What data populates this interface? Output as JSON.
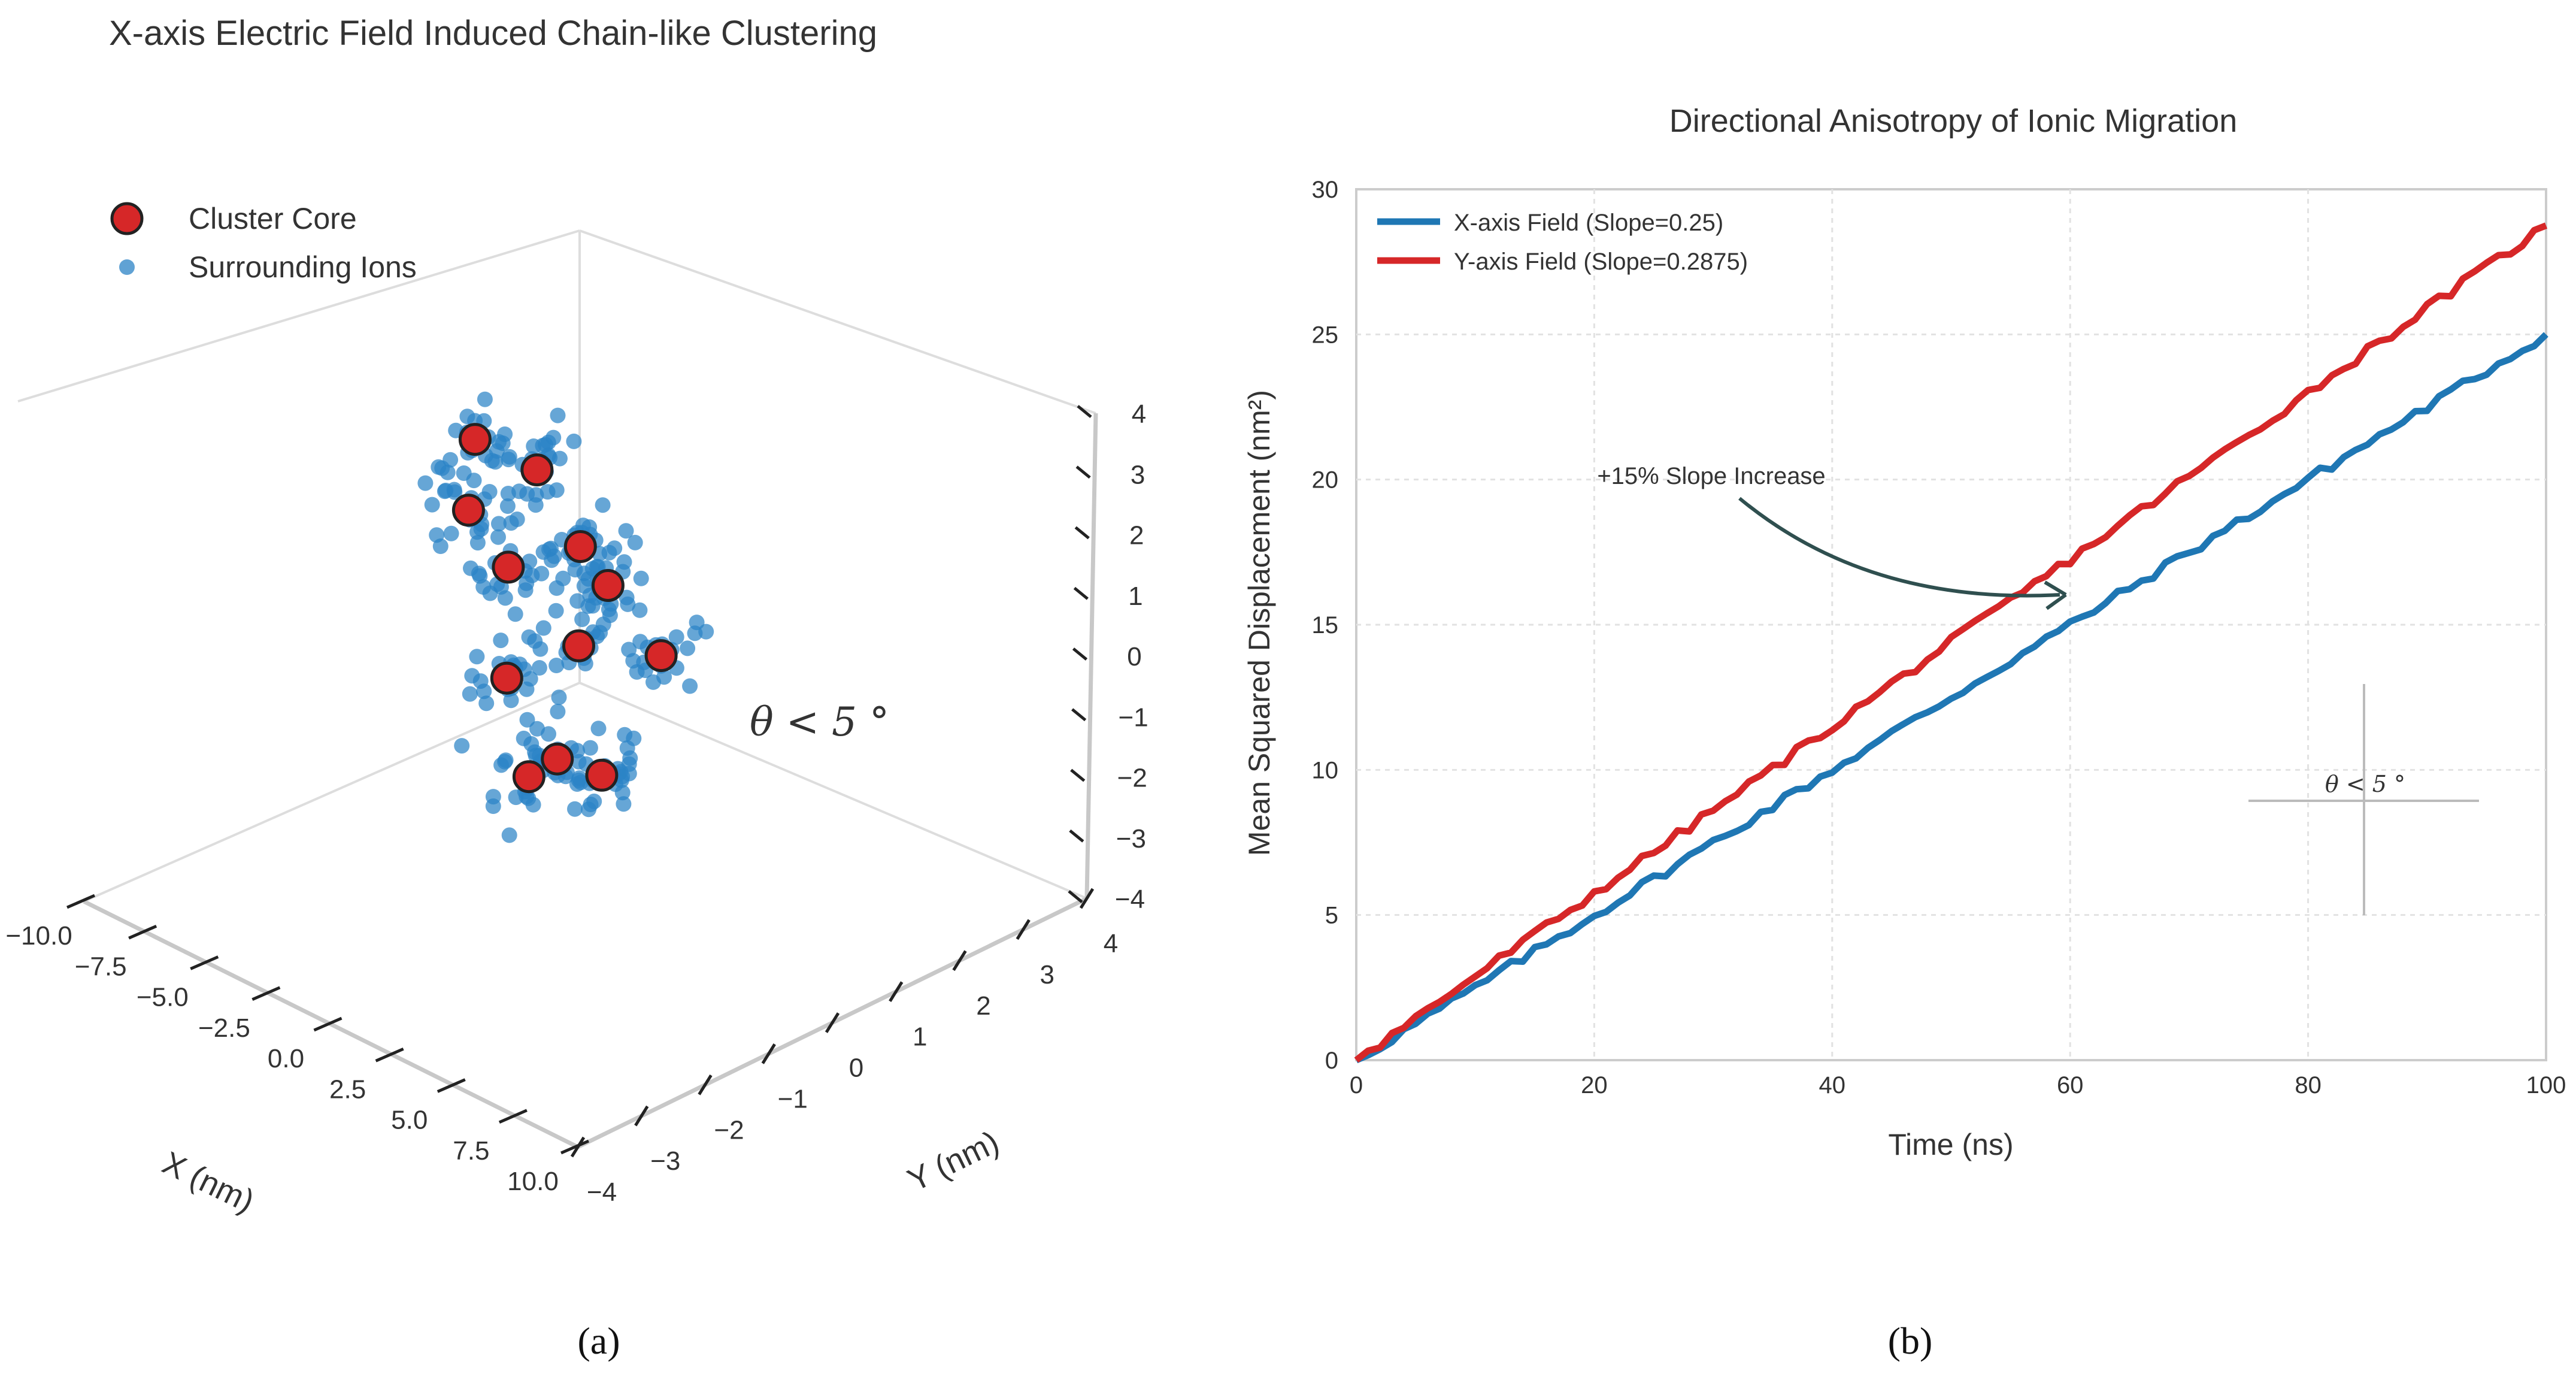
{
  "panel_labels": {
    "a": "(a)",
    "b": "(b)"
  },
  "chart_data": [
    {
      "type": "scatter3d",
      "title": "X-axis Electric Field Induced Chain-like Clustering",
      "xlabel": "X (nm)",
      "ylabel": "Y (nm)",
      "zlabel": "",
      "xlim": [
        -10,
        10
      ],
      "ylim": [
        -4,
        4
      ],
      "zlim": [
        -4,
        4
      ],
      "xticks": [
        -10.0,
        -7.5,
        -5.0,
        -2.5,
        0.0,
        2.5,
        5.0,
        7.5,
        10.0
      ],
      "xtick_labels": [
        "−10.0",
        "−7.5",
        "−5.0",
        "−2.5",
        "0.0",
        "2.5",
        "5.0",
        "7.5",
        "10.0"
      ],
      "yticks": [
        -4,
        -3,
        -2,
        -1,
        0,
        1,
        2,
        3,
        4
      ],
      "ytick_labels": [
        "−4",
        "−3",
        "−2",
        "−1",
        "0",
        "1",
        "2",
        "3",
        "4"
      ],
      "zticks": [
        -4,
        -3,
        -2,
        -1,
        0,
        1,
        2,
        3,
        4
      ],
      "ztick_labels": [
        "−4",
        "−3",
        "−2",
        "−1",
        "0",
        "1",
        "2",
        "3",
        "4"
      ],
      "legend": [
        {
          "label": "Cluster Core",
          "color": "#d62728",
          "edge": "#222222"
        },
        {
          "label": "Surrounding Ions",
          "color": "#2b83c6"
        }
      ],
      "legend_position": "top-left",
      "annotation": "θ < 5 °",
      "cores": [
        {
          "x": -7.8,
          "y": 1.2,
          "z": 1.4
        },
        {
          "x": -7.0,
          "y": 0.8,
          "z": 0.6
        },
        {
          "x": -5.8,
          "y": 1.4,
          "z": 1.2
        },
        {
          "x": -4.6,
          "y": 0.5,
          "z": 0.3
        },
        {
          "x": -4.0,
          "y": 1.4,
          "z": 0.3
        },
        {
          "x": -1.6,
          "y": 0.9,
          "z": 0.4
        },
        {
          "x": -1.8,
          "y": -0.6,
          "z": -0.4
        },
        {
          "x": -0.2,
          "y": -0.1,
          "z": 0.2
        },
        {
          "x": 1.3,
          "y": -1.0,
          "z": -0.9
        },
        {
          "x": 2.2,
          "y": -1.8,
          "z": -0.6
        },
        {
          "x": 2.1,
          "y": 0.3,
          "z": 0.3
        },
        {
          "x": 3.6,
          "y": -1.2,
          "z": -0.6
        }
      ],
      "ion_spread_nm": {
        "x": 0.8,
        "y": 0.5,
        "z": 0.6
      },
      "ions_per_core": 24
    },
    {
      "type": "line",
      "title": "Directional Anisotropy of Ionic Migration",
      "xlabel": "Time (ns)",
      "ylabel": "Mean Squared Displacement (nm²)",
      "xlim": [
        0,
        100
      ],
      "ylim": [
        0,
        30
      ],
      "xticks": [
        0,
        20,
        40,
        60,
        80,
        100
      ],
      "yticks": [
        0,
        5,
        10,
        15,
        20,
        25,
        30
      ],
      "grid": true,
      "legend_position": "top-left",
      "series": [
        {
          "name": "X-axis Field (Slope=0.25)",
          "color": "#1f77b4",
          "slope": 0.25,
          "x": [
            0,
            10,
            20,
            30,
            40,
            50,
            60,
            70,
            80,
            90,
            100
          ],
          "y": [
            0,
            2.5,
            5.0,
            7.5,
            10.0,
            12.5,
            15.0,
            17.5,
            20.0,
            22.5,
            25.0
          ]
        },
        {
          "name": "Y-axis Field (Slope=0.2875)",
          "color": "#d62728",
          "slope": 0.2875,
          "x": [
            0,
            10,
            20,
            30,
            40,
            50,
            60,
            70,
            80,
            90,
            100
          ],
          "y": [
            0,
            2.9,
            5.75,
            8.6,
            11.5,
            14.4,
            17.25,
            20.1,
            23.0,
            25.9,
            28.75
          ]
        }
      ],
      "annotations": [
        {
          "text": "+15% Slope Increase",
          "target_x": 60,
          "target_y": 16,
          "color": "#2f4f4f"
        },
        {
          "text": "θ < 5 °",
          "x": 85,
          "y": 9.3
        }
      ]
    }
  ]
}
